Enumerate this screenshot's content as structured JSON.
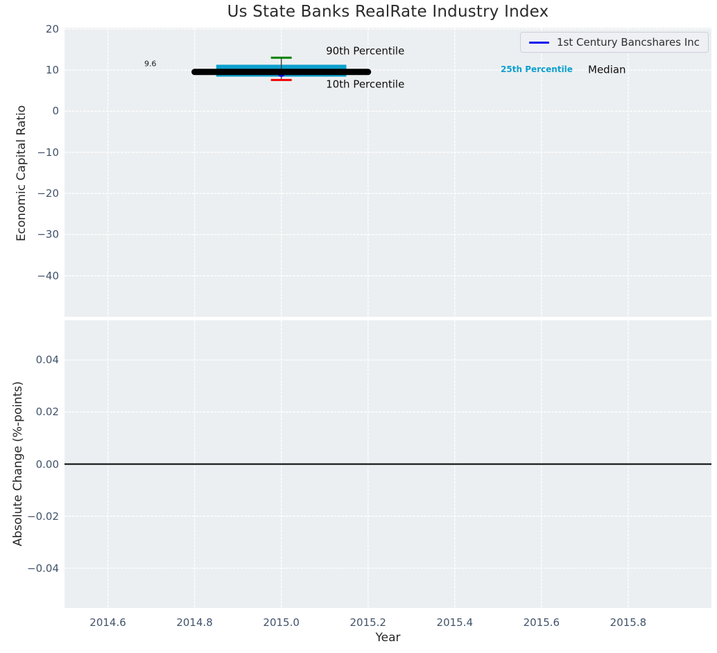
{
  "figure": {
    "title": "Us State Banks RealRate Industry Index",
    "background": "#ffffff",
    "plot_background": "#eceff1",
    "grid_color": "#ffffff",
    "tick_color": "#42536b"
  },
  "chart_data": [
    {
      "type": "line",
      "panel": "top",
      "title": "Us State Banks RealRate Industry Index",
      "ylabel": "Economic Capital Ratio",
      "xlim": [
        2014.5,
        2015.992
      ],
      "ylim": [
        -50.0,
        20.3
      ],
      "grid": true,
      "yticks": [
        20,
        10,
        0,
        -10,
        -20,
        -30,
        -40
      ],
      "ytick_labels": [
        "20",
        "10",
        "0",
        "−10",
        "−20",
        "−30",
        "−40"
      ],
      "xticks": [
        2014.6,
        2014.8,
        2015.0,
        2015.2,
        2015.4,
        2015.6,
        2015.8
      ],
      "legend": {
        "position": "upper right",
        "entries": [
          {
            "label": "1st Century Bancshares Inc",
            "color": "#0a0aee"
          }
        ]
      },
      "series": [
        {
          "name": "1st Century Bancshares Inc",
          "type": "marker",
          "x": [
            2015.0
          ],
          "y": [
            9.6
          ],
          "color": "#0a0aee",
          "value_label": "9.6"
        },
        {
          "name": "Median",
          "type": "segment",
          "x": [
            2014.8,
            2015.2
          ],
          "y": 9.55,
          "color": "#000000"
        },
        {
          "name": "25th-75th Percentile Band",
          "type": "band",
          "x": [
            2014.85,
            2015.15
          ],
          "y_low": 8.4,
          "y_high": 11.3,
          "color": "#0ea0ce"
        },
        {
          "name": "90th Percentile",
          "type": "cap",
          "x": 2015.0,
          "y": 13.0,
          "color": "#008000"
        },
        {
          "name": "10th Percentile",
          "type": "cap",
          "x": 2015.0,
          "y": 7.6,
          "color": "#f20000"
        }
      ],
      "annotations": [
        {
          "text": "9.6",
          "x": 2014.698,
          "y": 11.5,
          "anchor": "center",
          "size": 11,
          "bold": false,
          "color": "#1a1a1a"
        },
        {
          "text": "90th Percentile",
          "x": 2015.103,
          "y": 14.55,
          "anchor": "left",
          "size": 15,
          "bold": false,
          "color": "#0d0d0d"
        },
        {
          "text": "10th Percentile",
          "x": 2015.103,
          "y": 6.45,
          "anchor": "left",
          "size": 15,
          "bold": false,
          "color": "#0d0d0d"
        },
        {
          "text": "25th Percentile",
          "x": 2015.589,
          "y": 10.15,
          "anchor": "center",
          "size": 12,
          "bold": true,
          "color": "#0ea0ce"
        },
        {
          "text": "Median",
          "x": 2015.751,
          "y": 10.1,
          "anchor": "center",
          "size": 15,
          "bold": false,
          "color": "#0d0d0d"
        }
      ]
    },
    {
      "type": "line",
      "panel": "bottom",
      "ylabel": "Absolute Change (%-points)",
      "xlabel": "Year",
      "xlim": [
        2014.5,
        2015.992
      ],
      "ylim": [
        -0.0553,
        0.0553
      ],
      "grid": true,
      "yticks": [
        0.04,
        0.02,
        0,
        -0.02,
        -0.04
      ],
      "ytick_labels": [
        "0.04",
        "0.02",
        "0.00",
        "−0.02",
        "−0.04"
      ],
      "xticks": [
        2014.6,
        2014.8,
        2015.0,
        2015.2,
        2015.4,
        2015.6,
        2015.8
      ],
      "xtick_labels": [
        "2014.6",
        "2014.8",
        "2015.0",
        "2015.2",
        "2015.4",
        "2015.6",
        "2015.8"
      ],
      "series": [
        {
          "name": "zero-line",
          "type": "hline",
          "y": 0.0,
          "color": "#000000"
        }
      ]
    }
  ]
}
